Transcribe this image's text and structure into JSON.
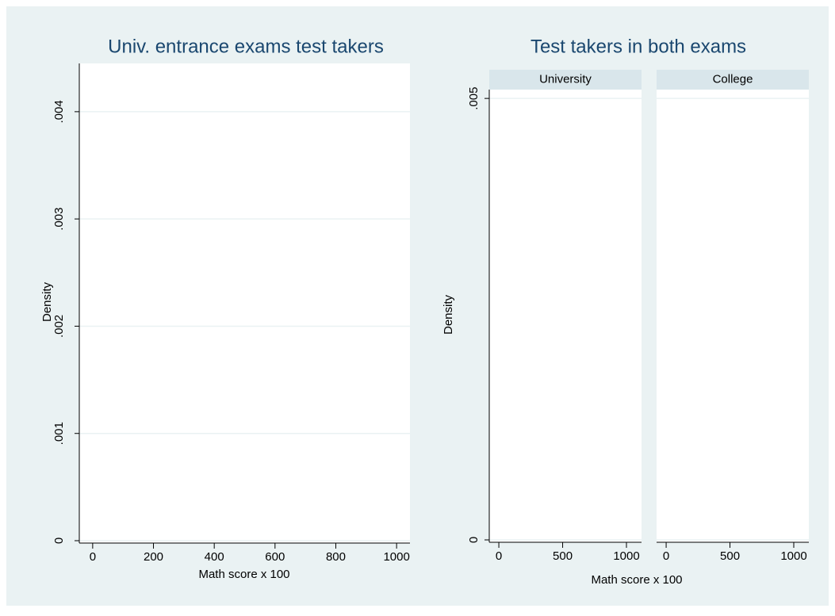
{
  "chart_data": [
    {
      "type": "histogram",
      "title": "Univ. entrance exams test takers",
      "xlabel": "Math score x 100",
      "ylabel": "Density",
      "xlim": [
        -44,
        1044
      ],
      "xticks": [
        0,
        200,
        400,
        600,
        800,
        1000
      ],
      "ylim": [
        0,
        0.00445
      ],
      "yticks": [
        0,
        {
          "value": 0.001,
          "label": ".001"
        },
        {
          "value": 0.002,
          "label": ".002"
        },
        {
          "value": 0.003,
          "label": ".003"
        },
        {
          "value": 0.004,
          "label": ".004"
        }
      ],
      "grid": true
    },
    {
      "type": "histogram",
      "title": "Test takers in both exams",
      "panels": [
        "University",
        "College"
      ],
      "xlabel": "Math score x 100",
      "ylabel": "Density",
      "xlim": [
        -75,
        1118
      ],
      "xticks": [
        0,
        500,
        1000
      ],
      "ylim": [
        0,
        0.0051
      ],
      "yticks": [
        0,
        {
          "value": 0.005,
          "label": ".005"
        }
      ],
      "grid": true
    }
  ]
}
